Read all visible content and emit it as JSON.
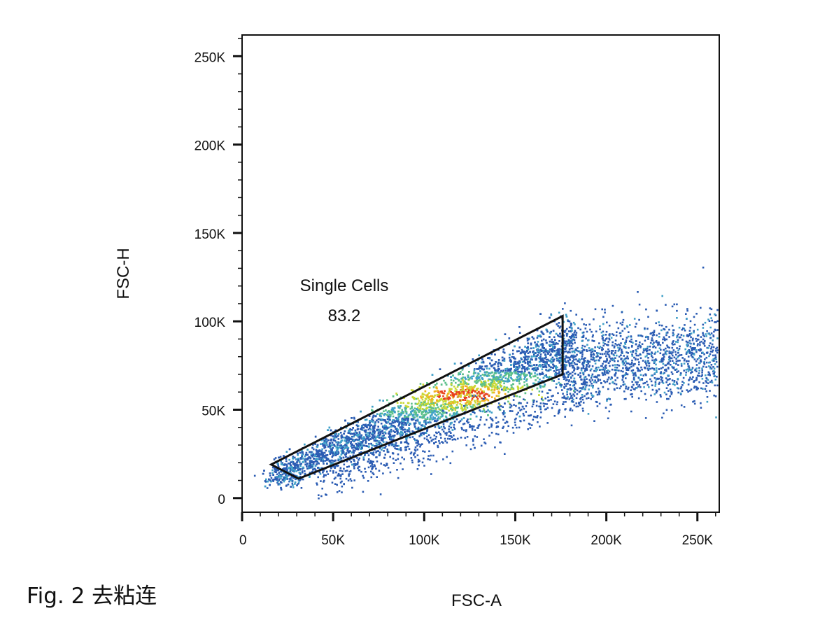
{
  "caption": "Fig. 2  去粘连",
  "chart_data": {
    "type": "scatter",
    "title": "",
    "xlabel": "FSC-A",
    "ylabel": "FSC-H",
    "xlim": [
      0,
      262000
    ],
    "ylim": [
      -8000,
      262000
    ],
    "x_ticks": [
      {
        "value": 0,
        "label": "0"
      },
      {
        "value": 50000,
        "label": "50K"
      },
      {
        "value": 100000,
        "label": "100K"
      },
      {
        "value": 150000,
        "label": "150K"
      },
      {
        "value": 200000,
        "label": "200K"
      },
      {
        "value": 250000,
        "label": "250K"
      }
    ],
    "y_ticks": [
      {
        "value": 0,
        "label": "0"
      },
      {
        "value": 50000,
        "label": "50K"
      },
      {
        "value": 100000,
        "label": "100K"
      },
      {
        "value": 150000,
        "label": "150K"
      },
      {
        "value": 200000,
        "label": "200K"
      },
      {
        "value": 250000,
        "label": "250K"
      }
    ],
    "gate": {
      "name": "Single Cells",
      "value": "83.2",
      "polygon": [
        [
          16000,
          19000
        ],
        [
          31000,
          11000
        ],
        [
          176000,
          70000
        ],
        [
          176000,
          103000
        ]
      ]
    },
    "density_colors": [
      "#2b5cb3",
      "#3fa0c8",
      "#5cc08a",
      "#c8d935",
      "#f2b01e",
      "#e8401e"
    ],
    "grid": false
  }
}
